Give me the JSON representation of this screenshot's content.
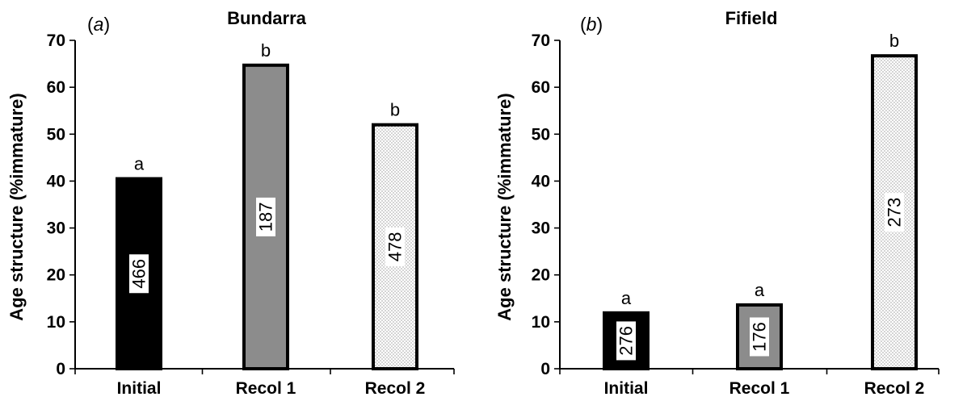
{
  "chart_data": [
    {
      "type": "bar",
      "panel_tag_letter": "a",
      "title": "Bundarra",
      "ylabel": "Age structure (%immature)",
      "ylim": [
        0,
        70
      ],
      "yticks": [
        0,
        10,
        20,
        30,
        40,
        50,
        60,
        70
      ],
      "categories": [
        "Initial",
        "Recol 1",
        "Recol 2"
      ],
      "values": [
        40.5,
        64.7,
        52.0
      ],
      "significance": [
        "a",
        "b",
        "b"
      ],
      "sample_sizes": [
        "466",
        "187",
        "478"
      ],
      "bar_styles": [
        "black",
        "grey",
        "dotted"
      ]
    },
    {
      "type": "bar",
      "panel_tag_letter": "b",
      "title": "Fifield",
      "ylabel": "Age structure (%immature)",
      "ylim": [
        0,
        70
      ],
      "yticks": [
        0,
        10,
        20,
        30,
        40,
        50,
        60,
        70
      ],
      "categories": [
        "Initial",
        "Recol 1",
        "Recol 2"
      ],
      "values": [
        11.9,
        13.6,
        66.7
      ],
      "significance": [
        "a",
        "a",
        "b"
      ],
      "sample_sizes": [
        "276",
        "176",
        "273"
      ],
      "bar_styles": [
        "black",
        "grey",
        "dotted"
      ]
    }
  ],
  "colors": {
    "black": "#000000",
    "grey": "#8c8c8c",
    "dotted_bg": "#ffffff",
    "dotted_dot": "#7a7a7a"
  }
}
